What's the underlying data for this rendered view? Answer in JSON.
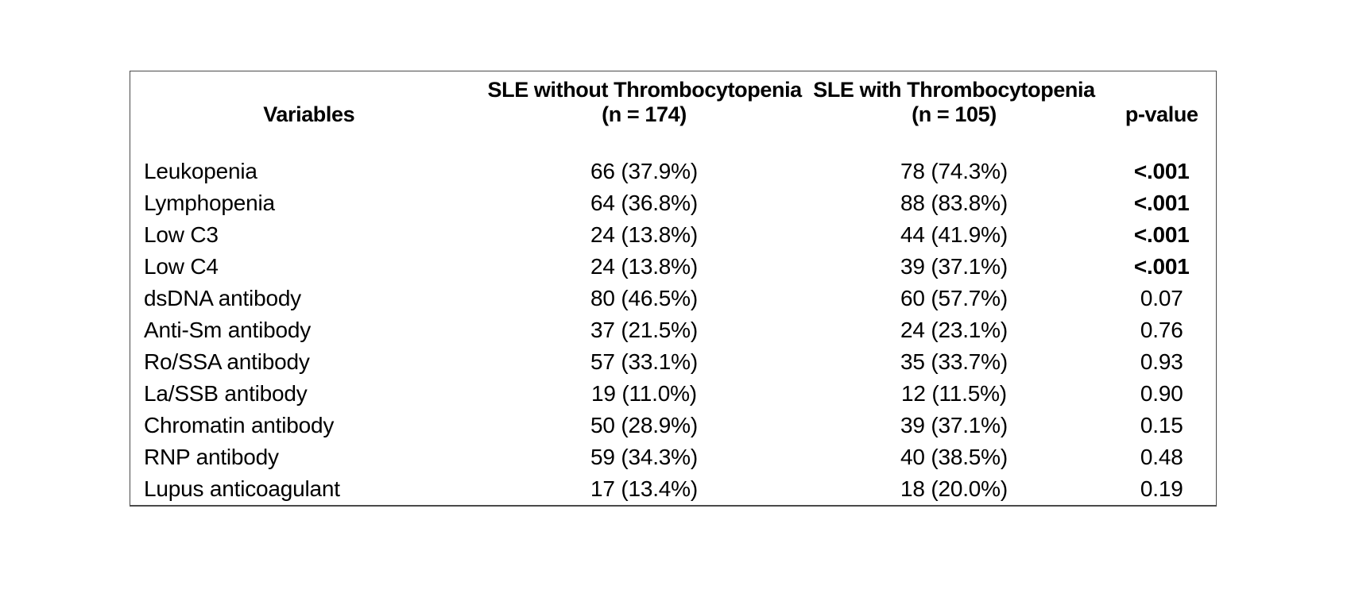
{
  "colors": {
    "background": "#ffffff",
    "text": "#000000",
    "table_border": "#4a4a4a"
  },
  "table": {
    "header": {
      "variables": "Variables",
      "without_line1": "SLE without Thrombocytopenia",
      "without_line2": "(n = 174)",
      "with_line1": "SLE with Thrombocytopenia",
      "with_line2": "(n = 105)",
      "pvalue": "p-value"
    },
    "rows": [
      {
        "variable": "Leukopenia",
        "without": "66 (37.9%)",
        "with": "78 (74.3%)",
        "p": "<.001",
        "p_bold": true
      },
      {
        "variable": "Lymphopenia",
        "without": "64 (36.8%)",
        "with": "88 (83.8%)",
        "p": "<.001",
        "p_bold": true
      },
      {
        "variable": "Low C3",
        "without": "24 (13.8%)",
        "with": "44 (41.9%)",
        "p": "<.001",
        "p_bold": true
      },
      {
        "variable": "Low C4",
        "without": "24 (13.8%)",
        "with": "39 (37.1%)",
        "p": "<.001",
        "p_bold": true
      },
      {
        "variable": "dsDNA antibody",
        "without": "80 (46.5%)",
        "with": "60 (57.7%)",
        "p": "0.07",
        "p_bold": false
      },
      {
        "variable": "Anti-Sm antibody",
        "without": "37 (21.5%)",
        "with": "24 (23.1%)",
        "p": "0.76",
        "p_bold": false
      },
      {
        "variable": "Ro/SSA antibody",
        "without": "57 (33.1%)",
        "with": "35 (33.7%)",
        "p": "0.93",
        "p_bold": false
      },
      {
        "variable": "La/SSB antibody",
        "without": "19 (11.0%)",
        "with": "12 (11.5%)",
        "p": "0.90",
        "p_bold": false
      },
      {
        "variable": "Chromatin antibody",
        "without": "50 (28.9%)",
        "with": "39 (37.1%)",
        "p": "0.15",
        "p_bold": false
      },
      {
        "variable": "RNP antibody",
        "without": "59 (34.3%)",
        "with": "40 (38.5%)",
        "p": "0.48",
        "p_bold": false
      },
      {
        "variable": "Lupus anticoagulant",
        "without": "17 (13.4%)",
        "with": "18 (20.0%)",
        "p": "0.19",
        "p_bold": false
      }
    ]
  },
  "chart_data": {
    "type": "table",
    "columns": [
      "Variables",
      "SLE without Thrombocytopenia (n = 174)",
      "SLE with Thrombocytopenia (n = 105)",
      "p-value"
    ],
    "rows": [
      [
        "Leukopenia",
        "66 (37.9%)",
        "78 (74.3%)",
        "<.001"
      ],
      [
        "Lymphopenia",
        "64 (36.8%)",
        "88 (83.8%)",
        "<.001"
      ],
      [
        "Low C3",
        "24 (13.8%)",
        "44 (41.9%)",
        "<.001"
      ],
      [
        "Low C4",
        "24 (13.8%)",
        "39 (37.1%)",
        "<.001"
      ],
      [
        "dsDNA antibody",
        "80 (46.5%)",
        "60 (57.7%)",
        "0.07"
      ],
      [
        "Anti-Sm antibody",
        "37 (21.5%)",
        "24 (23.1%)",
        "0.76"
      ],
      [
        "Ro/SSA antibody",
        "57 (33.1%)",
        "35 (33.7%)",
        "0.93"
      ],
      [
        "La/SSB antibody",
        "19 (11.0%)",
        "12 (11.5%)",
        "0.90"
      ],
      [
        "Chromatin antibody",
        "50 (28.9%)",
        "39 (37.1%)",
        "0.15"
      ],
      [
        "RNP antibody",
        "59 (34.3%)",
        "40 (38.5%)",
        "0.48"
      ],
      [
        "Lupus anticoagulant",
        "17 (13.4%)",
        "18 (20.0%)",
        "0.19"
      ]
    ]
  }
}
